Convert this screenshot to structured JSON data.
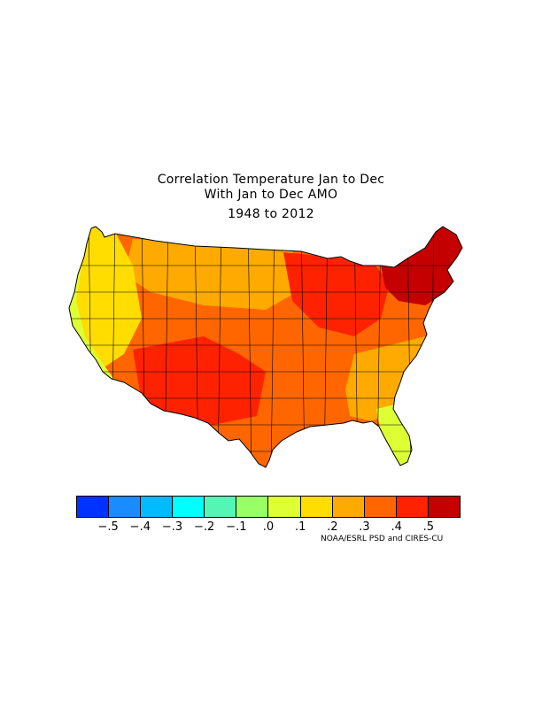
{
  "title": {
    "line1": "Correlation Temperature Jan to Dec",
    "line2": "With Jan to Dec AMO",
    "line3": "1948 to 2012"
  },
  "colorbar": {
    "colors": [
      "#0033ff",
      "#1a8cff",
      "#00bbff",
      "#00ffff",
      "#55f5b5",
      "#99ff66",
      "#ddff33",
      "#ffdd00",
      "#ffaa00",
      "#ff6600",
      "#ff2200",
      "#c40000"
    ],
    "tick_labels": [
      "−.5",
      "−.4",
      "−.3",
      "−.2",
      "−.1",
      ".0",
      ".1",
      ".2",
      ".3",
      ".4",
      ".5"
    ]
  },
  "credit": "NOAA/ESRL PSD and CIRES-CU",
  "regions": {
    "pacific_coast": "#ddff33",
    "far_northwest": "#ffdd00",
    "west_interior": "#ff6600",
    "southwest": "#ff2200",
    "plains": "#ff6600",
    "northern_plains": "#ffaa00",
    "great_lakes": "#ff2200",
    "northeast": "#c40000",
    "southeast_coast": "#ffaa00",
    "florida": "#ddff33"
  }
}
